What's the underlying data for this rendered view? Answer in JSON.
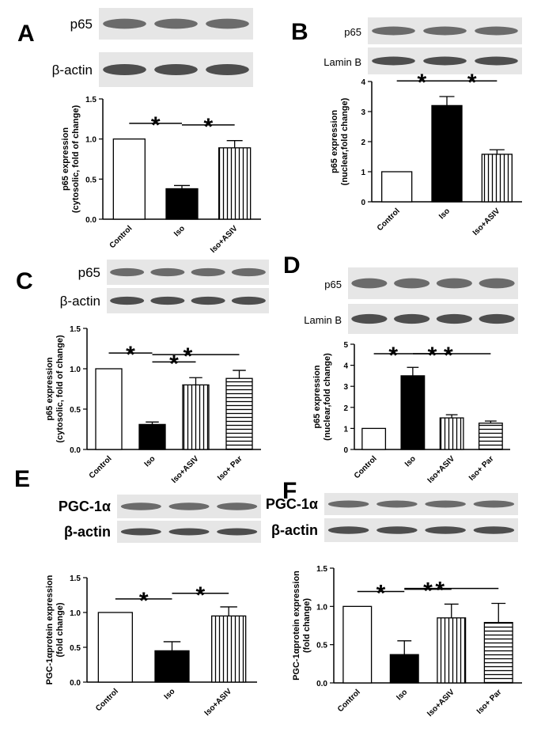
{
  "chart_data": [
    {
      "type": "bar",
      "panel": "A",
      "blot_labels": [
        "p65",
        "β-actin"
      ],
      "ylabel": [
        "p65 expression",
        "(cytosolic, fold of change)"
      ],
      "categories": [
        "Control",
        "Iso",
        "Iso+ASIV"
      ],
      "values": [
        1.0,
        0.38,
        0.89
      ],
      "errors": [
        null,
        0.04,
        0.09
      ],
      "fills": [
        "white",
        "black",
        "vertical"
      ],
      "ylim": [
        0,
        1.5
      ],
      "yticks": [
        {
          "value": 0,
          "label": "0.0"
        },
        {
          "value": 0.5,
          "label": "0.5"
        },
        {
          "value": 1,
          "label": "1.0"
        },
        {
          "value": 1.5,
          "label": "1.5"
        }
      ],
      "annotations": [
        {
          "text": "*",
          "from": 0,
          "to": 1
        },
        {
          "text": "*",
          "from": 1,
          "to": 2
        }
      ]
    },
    {
      "type": "bar",
      "panel": "B",
      "blot_labels": [
        "p65",
        "Lamin B"
      ],
      "ylabel": [
        "p65 expression",
        "(nuclear,fold change)"
      ],
      "categories": [
        "Control",
        "Iso",
        "Iso+ASIV"
      ],
      "values": [
        1.0,
        3.2,
        1.58
      ],
      "errors": [
        null,
        0.3,
        0.15
      ],
      "fills": [
        "white",
        "black",
        "vertical"
      ],
      "ylim": [
        0,
        4
      ],
      "yticks": [
        0,
        1,
        2,
        3,
        4
      ],
      "annotations": [
        {
          "text": "*",
          "from": 0,
          "to": 1
        },
        {
          "text": "*",
          "from": 1,
          "to": 2
        }
      ]
    },
    {
      "type": "bar",
      "panel": "C",
      "blot_labels": [
        "p65",
        "β-actin"
      ],
      "ylabel": [
        "p65 expression",
        "(cytosolic, fold of change)"
      ],
      "categories": [
        "Control",
        "Iso",
        "Iso+ASIV",
        "Iso+ Par"
      ],
      "values": [
        1.0,
        0.31,
        0.8,
        0.88
      ],
      "errors": [
        null,
        0.03,
        0.09,
        0.1
      ],
      "fills": [
        "white",
        "black",
        "vertical",
        "horizontal"
      ],
      "ylim": [
        0,
        1.5
      ],
      "yticks": [
        {
          "value": 0,
          "label": "0.0"
        },
        {
          "value": 0.5,
          "label": "0.5"
        },
        {
          "value": 1,
          "label": "1.0"
        },
        {
          "value": 1.5,
          "label": "1.5"
        }
      ],
      "annotations": [
        {
          "text": "*",
          "from": 0,
          "to": 1
        },
        {
          "text": "*",
          "from": 1,
          "to": 2
        },
        {
          "text": "*",
          "from": 1,
          "to": 3
        }
      ]
    },
    {
      "type": "bar",
      "panel": "D",
      "blot_labels": [
        "p65",
        "Lamin B"
      ],
      "ylabel": [
        "p65 expression",
        "(nuclear,fold change)"
      ],
      "categories": [
        "Control",
        "Iso",
        "Iso+ASIV",
        "Iso+ Par"
      ],
      "values": [
        1.0,
        3.5,
        1.5,
        1.25
      ],
      "errors": [
        null,
        0.4,
        0.15,
        0.1
      ],
      "fills": [
        "white",
        "black",
        "vertical",
        "horizontal"
      ],
      "ylim": [
        0,
        5
      ],
      "yticks": [
        0,
        1,
        2,
        3,
        4,
        5
      ],
      "annotations": [
        {
          "text": "*",
          "from": 0,
          "to": 1
        },
        {
          "text": "*",
          "from": 1,
          "to": 2
        },
        {
          "text": "*",
          "from": 1,
          "to": 3
        }
      ]
    },
    {
      "type": "bar",
      "panel": "E",
      "blot_labels": [
        "PGC-1α",
        "β-actin"
      ],
      "ylabel": [
        "PGC-1αprotein expression",
        "(fold change)"
      ],
      "categories": [
        "Control",
        "Iso",
        "Iso+ASIV"
      ],
      "values": [
        1.0,
        0.45,
        0.95
      ],
      "errors": [
        null,
        0.13,
        0.13
      ],
      "fills": [
        "white",
        "black",
        "vertical"
      ],
      "ylim": [
        0,
        1.5
      ],
      "yticks": [
        {
          "value": 0,
          "label": "0.0"
        },
        {
          "value": 0.5,
          "label": "0.5"
        },
        {
          "value": 1,
          "label": "1.0"
        },
        {
          "value": 1.5,
          "label": "1.5"
        }
      ],
      "annotations": [
        {
          "text": "*",
          "from": 0,
          "to": 1
        },
        {
          "text": "*",
          "from": 1,
          "to": 2
        }
      ]
    },
    {
      "type": "bar",
      "panel": "F",
      "blot_labels": [
        "PGC-1α",
        "β-actin"
      ],
      "ylabel": [
        "PGC-1αprotein expression",
        "(fold change)"
      ],
      "categories": [
        "Control",
        "Iso",
        "Iso+ASIV",
        "Iso+ Par"
      ],
      "values": [
        1.0,
        0.37,
        0.85,
        0.79
      ],
      "errors": [
        null,
        0.18,
        0.18,
        0.25
      ],
      "fills": [
        "white",
        "black",
        "vertical",
        "horizontal"
      ],
      "ylim": [
        0,
        1.5
      ],
      "yticks": [
        {
          "value": 0,
          "label": "0.0"
        },
        {
          "value": 0.5,
          "label": "0.5"
        },
        {
          "value": 1,
          "label": "1.0"
        },
        {
          "value": 1.5,
          "label": "1.5"
        }
      ],
      "annotations": [
        {
          "text": "*",
          "from": 0,
          "to": 1
        },
        {
          "text": "*",
          "from": 1,
          "to": 2
        },
        {
          "text": "*",
          "from": 1,
          "to": 3
        }
      ]
    }
  ]
}
